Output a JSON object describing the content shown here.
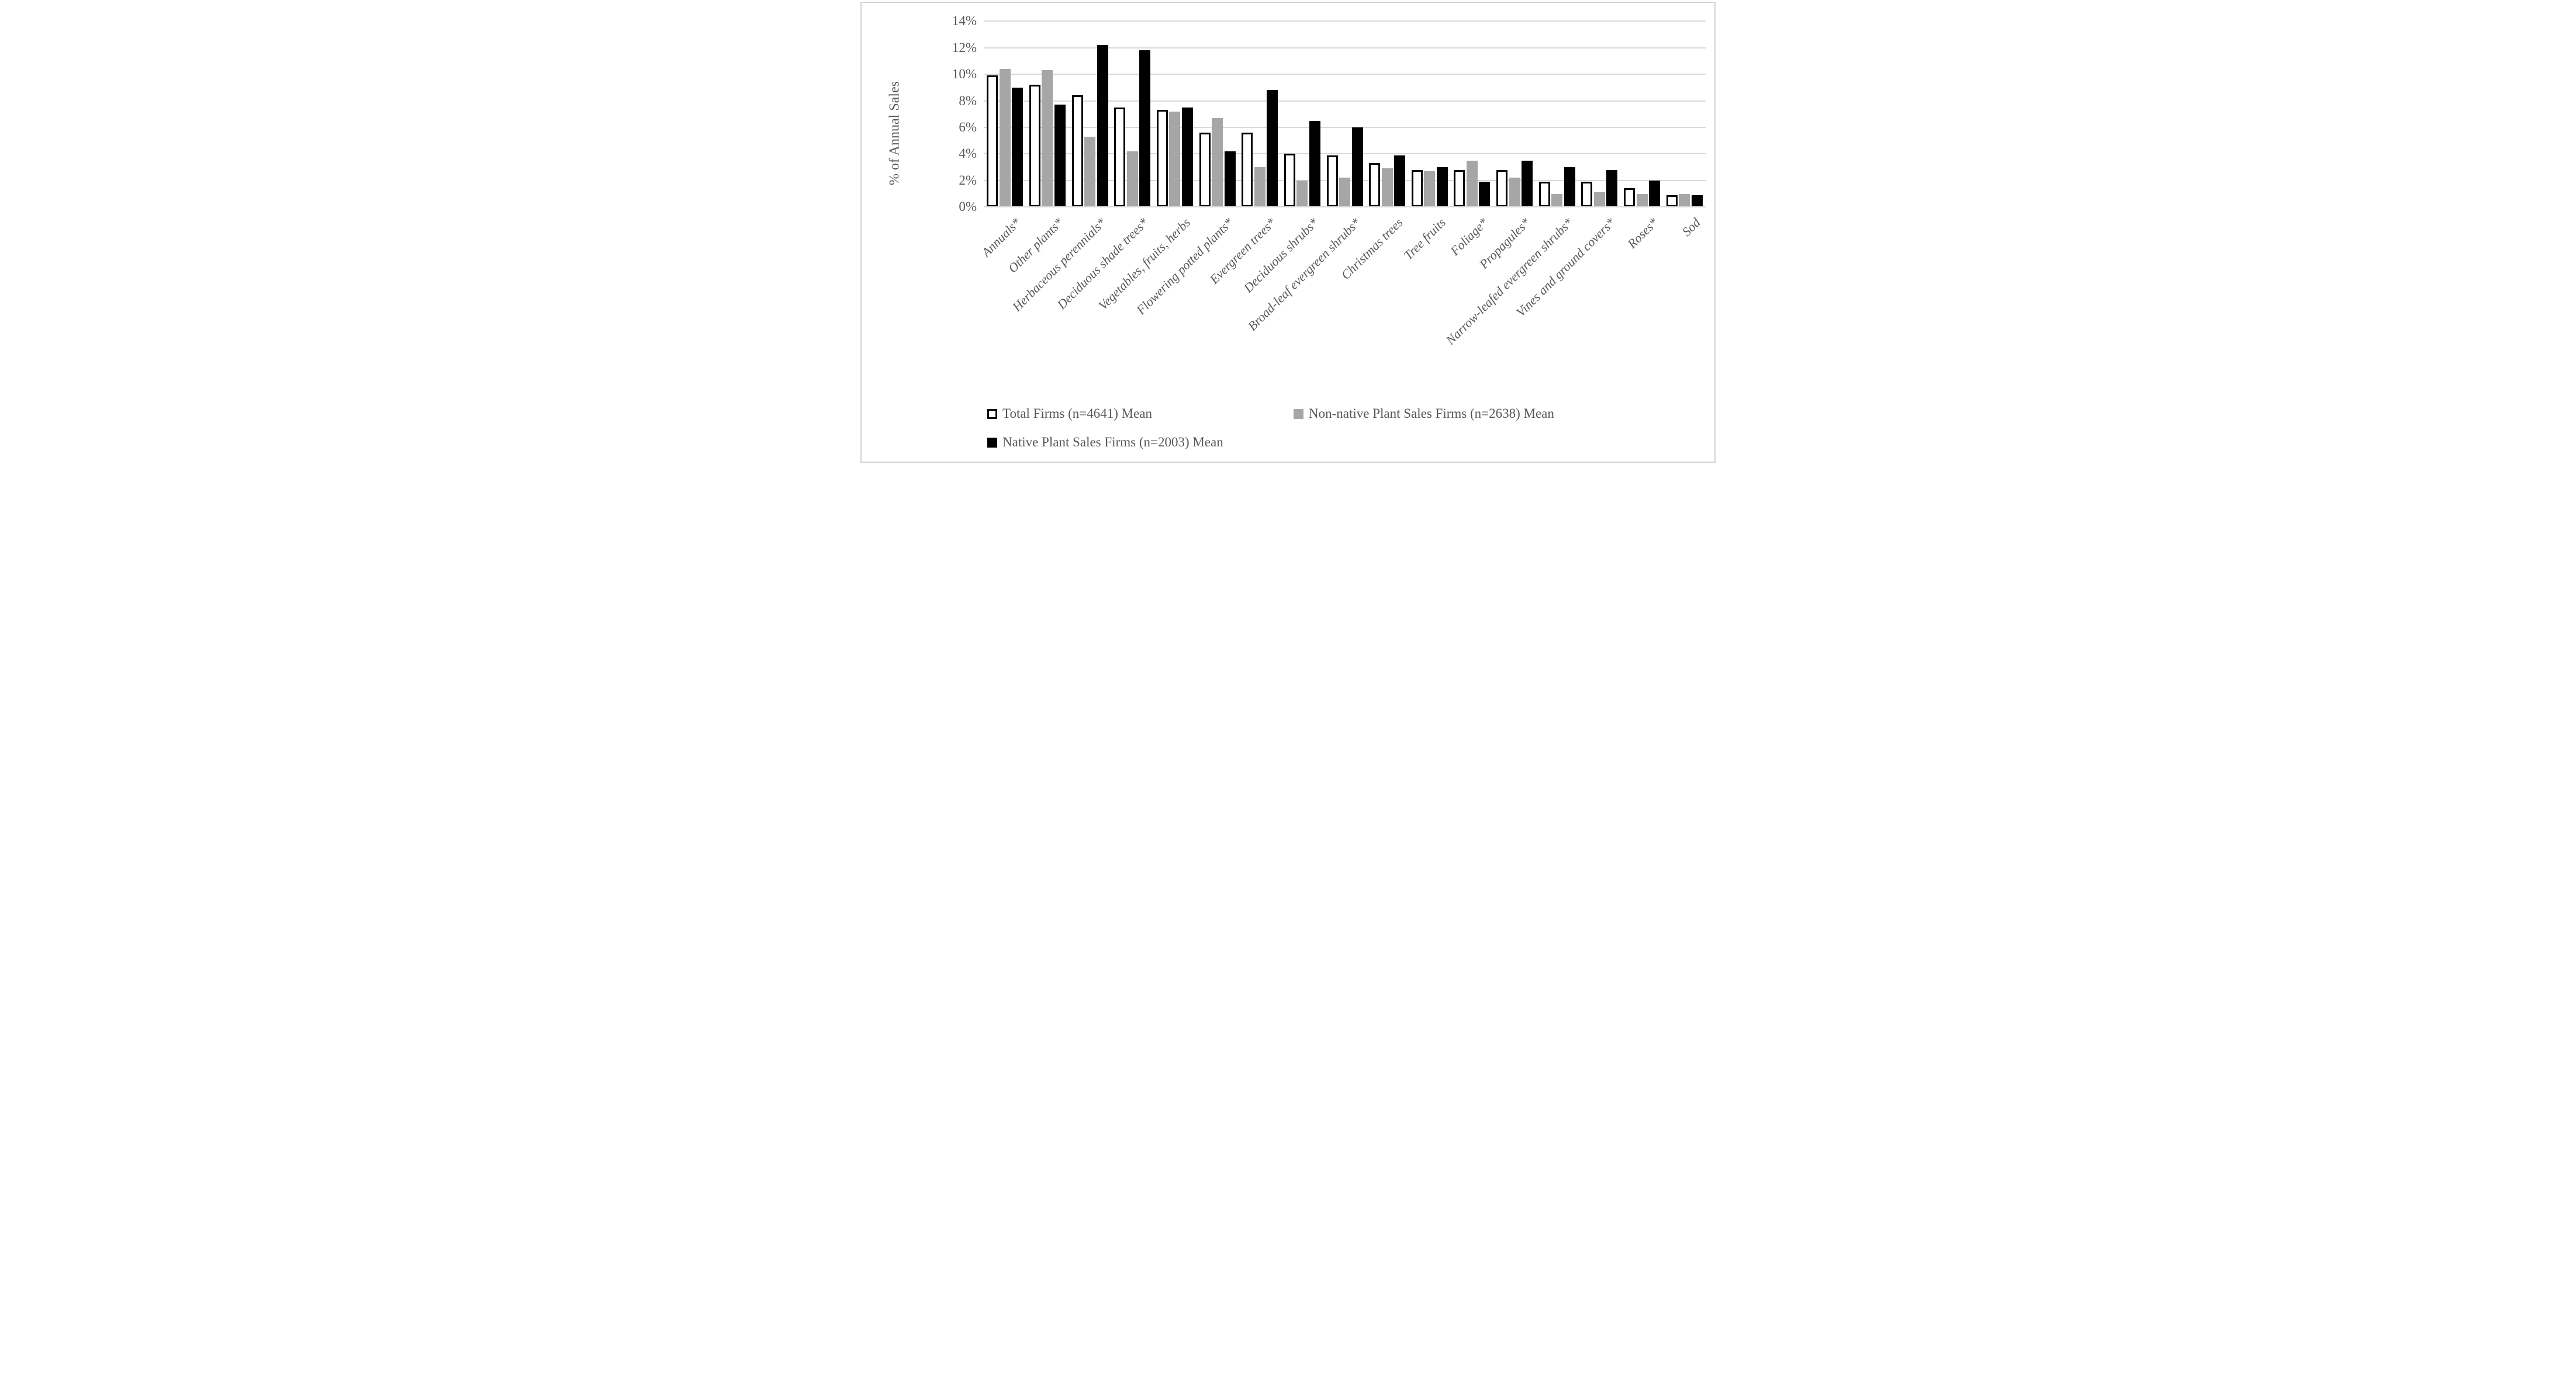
{
  "figure": {
    "background": "#ffffff",
    "border_color": "#d2d2d2"
  },
  "chart_data": {
    "type": "bar",
    "title": "",
    "xlabel": "",
    "ylabel": "% of Annual Sales",
    "ylim": [
      0,
      14
    ],
    "ytick_step": 2,
    "ytick_labels": [
      "0%",
      "2%",
      "4%",
      "6%",
      "8%",
      "10%",
      "12%",
      "14%"
    ],
    "grid": true,
    "legend_position": "bottom",
    "colors": {
      "gridline": "#d9d9d9",
      "axis_line": "#d9d9d9",
      "text": "#595959"
    },
    "categories": [
      "Annuals*",
      "Other plants*",
      "Herbaceous perennials*",
      "Deciduous shade trees*",
      "Vegetables, fruits, herbs",
      "Flowering potted plants*",
      "Evergreen trees*",
      "Deciduous shrubs*",
      "Broad-leaf evergreen shrubs*",
      "Christmas trees",
      "Tree fruits",
      "Foliage*",
      "Propagules*",
      "Narrow-leafed evergreen shrubs*",
      "Vines and ground covers*",
      "Roses*",
      "Sod"
    ],
    "series": [
      {
        "name": "Total Firms (n=4641) Mean",
        "swatch": "outlined",
        "fill": "#ffffff",
        "stroke": "#000000",
        "values": [
          9.9,
          9.2,
          8.4,
          7.5,
          7.3,
          5.6,
          5.6,
          4.0,
          3.9,
          3.3,
          2.8,
          2.8,
          2.8,
          1.9,
          1.9,
          1.4,
          0.9
        ]
      },
      {
        "name": "Non-native Plant Sales Firms (n=2638) Mean",
        "swatch": "solid",
        "fill": "#a6a6a6",
        "stroke": "none",
        "values": [
          10.4,
          10.3,
          5.3,
          4.2,
          7.2,
          6.7,
          3.0,
          2.0,
          2.2,
          2.9,
          2.7,
          3.5,
          2.2,
          1.0,
          1.1,
          1.0,
          1.0
        ]
      },
      {
        "name": "Native Plant Sales Firms (n=2003) Mean",
        "swatch": "solid",
        "fill": "#000000",
        "stroke": "none",
        "values": [
          9.0,
          7.7,
          12.2,
          11.8,
          7.5,
          4.2,
          8.8,
          6.5,
          6.0,
          3.9,
          3.0,
          1.9,
          3.5,
          3.0,
          2.8,
          2.0,
          0.9
        ]
      }
    ]
  }
}
